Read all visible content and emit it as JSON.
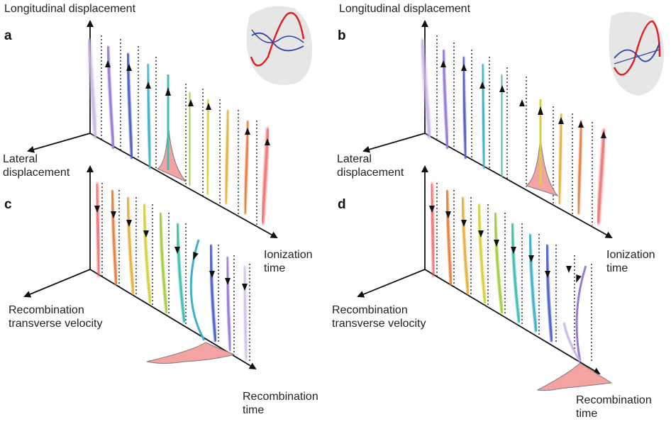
{
  "panels": {
    "a": {
      "letter": "a",
      "vertical_axis": "Longitudinal displacement",
      "side_axis": "Lateral\ndisplacement",
      "depth_axis": "Ionization\ntime"
    },
    "b": {
      "letter": "b",
      "vertical_axis": "Longitudinal displacement",
      "side_axis": "Lateral\ndisplacement",
      "depth_axis": "Ionization\ntime"
    },
    "c": {
      "letter": "c",
      "side_axis": "Recombination\ntransverse velocity",
      "depth_axis": "Recombination\ntime"
    },
    "d": {
      "letter": "d",
      "side_axis": "Recombination\ntransverse velocity",
      "depth_axis": "Recombination\ntime"
    }
  },
  "colors": {
    "axis": "#111111",
    "peak_fill": "#f4a3a3",
    "peak_edge": "#7a7a7a",
    "inset_bg": "#e6e6e6",
    "inset_red": "#e02020",
    "inset_blue": "#3040a0",
    "rainbow": [
      "#b99ad8",
      "#9a7ad6",
      "#5060c8",
      "#40b0c8",
      "#40c0b0",
      "#a0d040",
      "#d8d040",
      "#e8b040",
      "#e88040",
      "#e85050"
    ]
  },
  "icons": [
    "arrow-head-icon",
    "field-inset-icon"
  ]
}
